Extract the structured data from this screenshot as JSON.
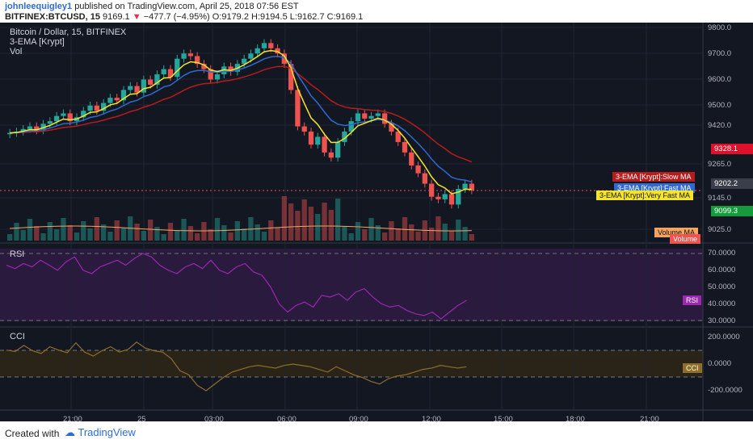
{
  "header": {
    "user": "johnleequigley1",
    "published": "published on TradingView.com, April 25, 2018 07:56 EST",
    "symbol": "BITFINEX:BTCUSD, 15",
    "last": "9169.1",
    "change": "−477.7 (−4.95%)",
    "ohlc": {
      "o": "O:9179.2",
      "h": "H:9194.5",
      "l": "L:9162.7",
      "c": "C:9169.1"
    }
  },
  "legend": {
    "title": "Bitcoin / Dollar, 15, BITFINEX",
    "ema": "3-EMA [Krypt]",
    "vol": "Vol",
    "rsi": "RSI",
    "cci": "CCI"
  },
  "price_axis": [
    "9800.0",
    "9700.0",
    "9600.0",
    "9500.0",
    "9420.0",
    "9265.0",
    "9145.0",
    "9025.0"
  ],
  "rsi_axis": [
    "70.0000",
    "60.0000",
    "50.0000",
    "40.0000",
    "30.0000"
  ],
  "cci_axis": [
    "200.0000",
    "0.0000",
    "-200.0000"
  ],
  "time_axis": [
    "21:00",
    "25",
    "03:00",
    "06:00",
    "09:00",
    "12:00",
    "15:00",
    "18:00",
    "21:00"
  ],
  "tags": {
    "slow_ma": "3-EMA [Krypt]:Slow MA",
    "fast_ma": "3-EMA [Krypt]:Fast MA",
    "very_fast_ma": "3-EMA [Krypt]:Very Fast MA",
    "volume_ma": "Volume MA",
    "volume": "Volume",
    "rsi": "RSI",
    "cci": "CCI",
    "price_slow": "9328.1",
    "price_cur": "9202.2",
    "price_low": "9099.3"
  },
  "colors": {
    "up": "#26a69a",
    "down": "#ef5350",
    "slow": "#b71c1c",
    "fast": "#2f6ad0",
    "very_fast": "#f5e52a",
    "rsi": "#9c27b0",
    "cci": "#8d6e2c"
  },
  "footer": {
    "created": "Created with",
    "brand": "TradingView"
  },
  "chart_data": {
    "type": "line",
    "candles_close": [
      9395,
      9400,
      9410,
      9420,
      9405,
      9430,
      9440,
      9460,
      9470,
      9440,
      9455,
      9480,
      9500,
      9480,
      9510,
      9530,
      9520,
      9560,
      9575,
      9550,
      9600,
      9580,
      9620,
      9640,
      9610,
      9680,
      9700,
      9690,
      9660,
      9640,
      9600,
      9620,
      9650,
      9630,
      9660,
      9680,
      9700,
      9720,
      9740,
      9720,
      9700,
      9660,
      9560,
      9420,
      9400,
      9350,
      9380,
      9320,
      9300,
      9360,
      9400,
      9440,
      9470,
      9450,
      9460,
      9470,
      9430,
      9400,
      9360,
      9320,
      9270,
      9240,
      9200,
      9150,
      9140,
      9160,
      9120,
      9180,
      9200,
      9175
    ],
    "ema_slow_label": "Slow MA",
    "ema_fast_label": "Fast MA",
    "ema_very_fast_label": "Very Fast MA",
    "rsi_values": [
      63,
      61,
      64,
      62,
      66,
      63,
      60,
      65,
      68,
      60,
      58,
      62,
      64,
      66,
      63,
      67,
      70,
      68,
      63,
      60,
      58,
      62,
      64,
      61,
      66,
      60,
      58,
      62,
      64,
      59,
      57,
      50,
      40,
      35,
      39,
      41,
      38,
      45,
      44,
      46,
      42,
      47,
      49,
      44,
      40,
      38,
      39,
      36,
      34,
      33,
      35,
      31,
      35,
      39,
      42
    ],
    "cci_values": [
      105,
      95,
      140,
      100,
      80,
      130,
      105,
      85,
      160,
      90,
      60,
      100,
      130,
      90,
      110,
      165,
      120,
      100,
      90,
      40,
      -50,
      -80,
      -160,
      -200,
      -150,
      -100,
      -60,
      -40,
      -20,
      -10,
      -20,
      -30,
      -10,
      0,
      -10,
      -20,
      -40,
      -60,
      -20,
      -50,
      -80,
      -100,
      -130,
      -150,
      -110,
      -90,
      -80,
      -60,
      -40,
      -30,
      -10,
      -20,
      -30,
      -20
    ]
  }
}
